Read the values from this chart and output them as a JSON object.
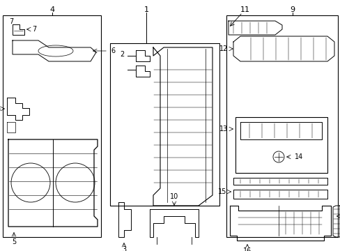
{
  "background_color": "#ffffff",
  "line_color": "#000000",
  "lw": 0.8,
  "fig_w": 4.89,
  "fig_h": 3.6,
  "dpi": 100
}
